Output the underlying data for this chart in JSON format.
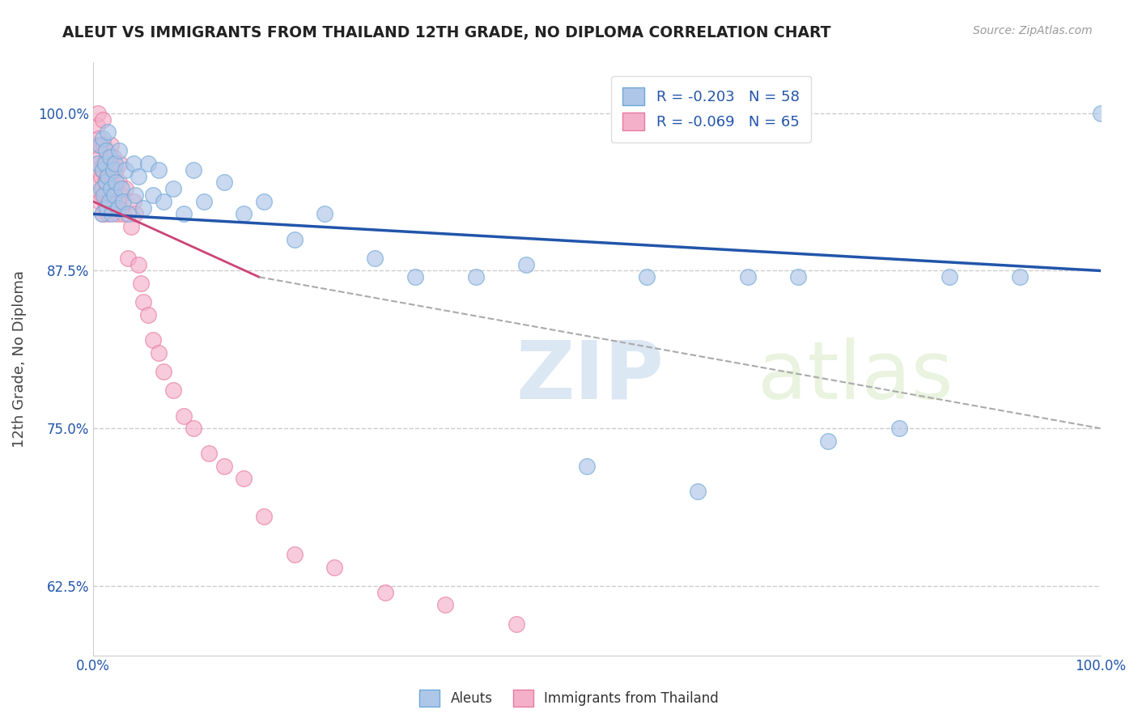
{
  "title": "ALEUT VS IMMIGRANTS FROM THAILAND 12TH GRADE, NO DIPLOMA CORRELATION CHART",
  "source_text": "Source: ZipAtlas.com",
  "ylabel": "12th Grade, No Diploma",
  "xlim": [
    0.0,
    1.0
  ],
  "ylim": [
    0.57,
    1.04
  ],
  "yticks": [
    0.625,
    0.75,
    0.875,
    1.0
  ],
  "ytick_labels": [
    "62.5%",
    "75.0%",
    "87.5%",
    "100.0%"
  ],
  "xticks": [
    0.0,
    0.25,
    0.5,
    0.75,
    1.0
  ],
  "xtick_labels": [
    "0.0%",
    "",
    "",
    "",
    "100.0%"
  ],
  "watermark_zip": "ZIP",
  "watermark_atlas": "atlas",
  "aleut_marker_color": "#aec6e8",
  "aleut_edge_color": "#6fa8d6",
  "thailand_marker_color": "#f4b0c8",
  "thailand_edge_color": "#e87aa0",
  "trend_blue_color": "#2255aa",
  "trend_pink_color": "#cc4477",
  "grid_color": "#cccccc",
  "aleut_r": -0.203,
  "aleut_n": 58,
  "thailand_r": -0.069,
  "thailand_n": 65,
  "aleut_points_x": [
    0.005,
    0.007,
    0.008,
    0.009,
    0.01,
    0.01,
    0.011,
    0.012,
    0.013,
    0.013,
    0.014,
    0.015,
    0.015,
    0.016,
    0.017,
    0.018,
    0.019,
    0.02,
    0.021,
    0.022,
    0.023,
    0.025,
    0.026,
    0.028,
    0.03,
    0.032,
    0.035,
    0.04,
    0.042,
    0.045,
    0.05,
    0.055,
    0.06,
    0.065,
    0.07,
    0.08,
    0.09,
    0.1,
    0.11,
    0.13,
    0.15,
    0.17,
    0.2,
    0.23,
    0.28,
    0.32,
    0.38,
    0.43,
    0.49,
    0.55,
    0.6,
    0.65,
    0.7,
    0.73,
    0.8,
    0.85,
    0.92,
    1.0
  ],
  "aleut_points_y": [
    0.96,
    0.975,
    0.94,
    0.92,
    0.955,
    0.98,
    0.935,
    0.96,
    0.945,
    0.97,
    0.925,
    0.95,
    0.985,
    0.93,
    0.965,
    0.94,
    0.92,
    0.955,
    0.935,
    0.96,
    0.945,
    0.925,
    0.97,
    0.94,
    0.93,
    0.955,
    0.92,
    0.96,
    0.935,
    0.95,
    0.925,
    0.96,
    0.935,
    0.955,
    0.93,
    0.94,
    0.92,
    0.955,
    0.93,
    0.945,
    0.92,
    0.93,
    0.9,
    0.92,
    0.885,
    0.87,
    0.87,
    0.88,
    0.72,
    0.87,
    0.7,
    0.87,
    0.87,
    0.74,
    0.75,
    0.87,
    0.87,
    1.0
  ],
  "thailand_points_x": [
    0.003,
    0.004,
    0.005,
    0.005,
    0.006,
    0.006,
    0.007,
    0.007,
    0.008,
    0.008,
    0.009,
    0.009,
    0.01,
    0.01,
    0.01,
    0.011,
    0.011,
    0.012,
    0.012,
    0.013,
    0.013,
    0.014,
    0.014,
    0.015,
    0.015,
    0.016,
    0.016,
    0.017,
    0.018,
    0.018,
    0.019,
    0.02,
    0.021,
    0.022,
    0.023,
    0.024,
    0.025,
    0.026,
    0.027,
    0.028,
    0.03,
    0.032,
    0.035,
    0.038,
    0.04,
    0.042,
    0.045,
    0.048,
    0.05,
    0.055,
    0.06,
    0.065,
    0.07,
    0.08,
    0.09,
    0.1,
    0.115,
    0.13,
    0.15,
    0.17,
    0.2,
    0.24,
    0.29,
    0.35,
    0.42
  ],
  "thailand_points_y": [
    0.975,
    0.99,
    0.96,
    1.0,
    0.945,
    0.98,
    0.93,
    0.965,
    0.95,
    0.975,
    0.935,
    0.955,
    0.92,
    0.94,
    0.995,
    0.96,
    0.975,
    0.925,
    0.945,
    0.935,
    0.97,
    0.95,
    0.965,
    0.92,
    0.94,
    0.93,
    0.955,
    0.96,
    0.935,
    0.975,
    0.95,
    0.965,
    0.925,
    0.94,
    0.955,
    0.92,
    0.93,
    0.945,
    0.96,
    0.935,
    0.92,
    0.94,
    0.885,
    0.91,
    0.93,
    0.92,
    0.88,
    0.865,
    0.85,
    0.84,
    0.82,
    0.81,
    0.795,
    0.78,
    0.76,
    0.75,
    0.73,
    0.72,
    0.71,
    0.68,
    0.65,
    0.64,
    0.62,
    0.61,
    0.595
  ]
}
